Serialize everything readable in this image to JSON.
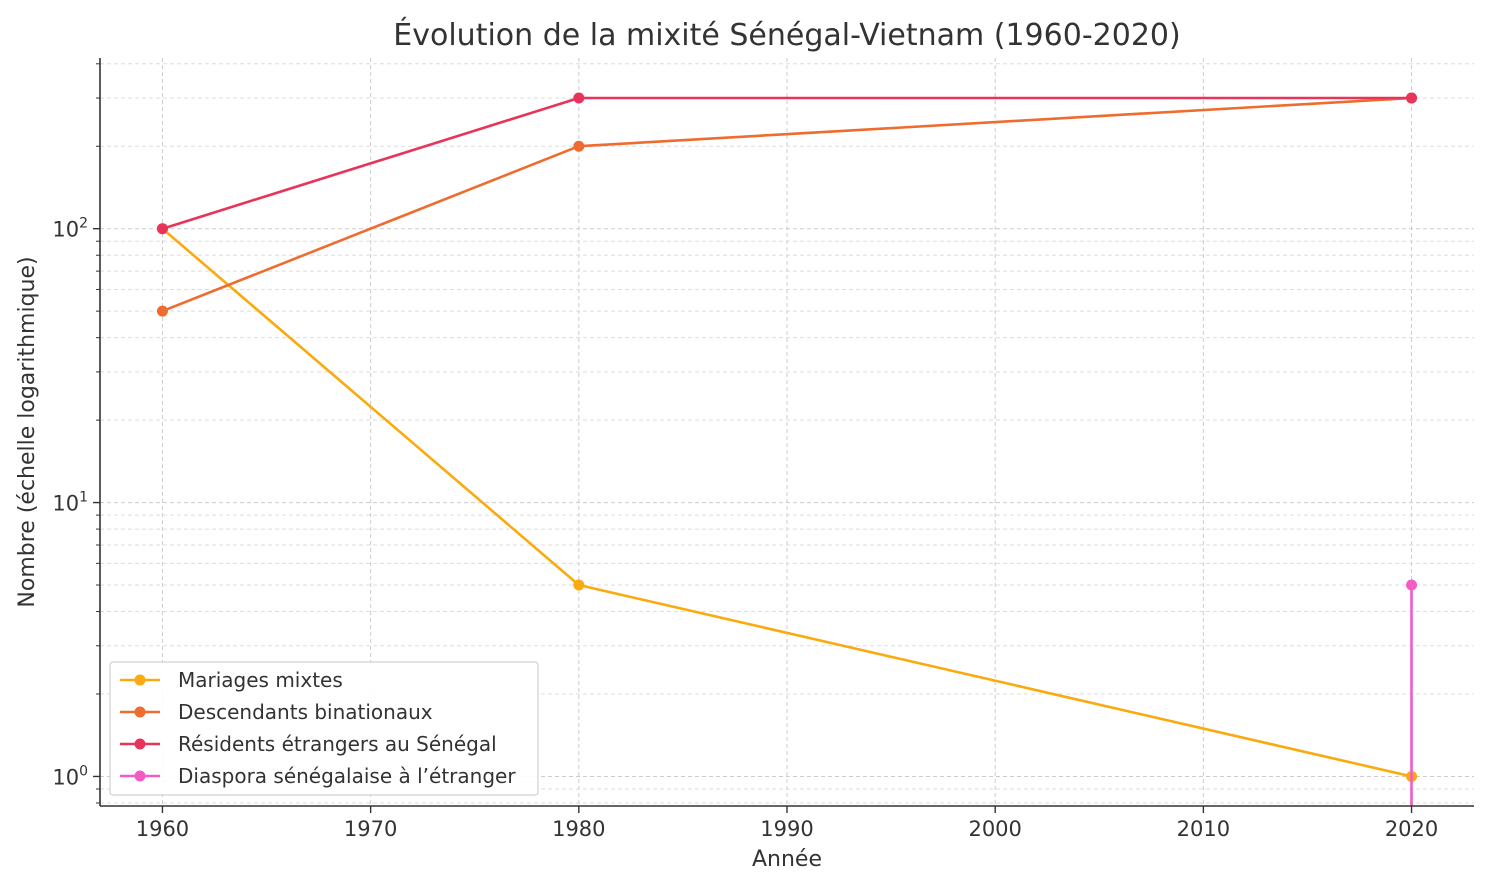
{
  "chart_data": {
    "type": "line",
    "title": "Évolution de la mixité Sénégal-Vietnam (1960-2020)",
    "xlabel": "Année",
    "ylabel": "Nombre (échelle logarithmique)",
    "yscale": "log",
    "xlim": [
      1957,
      2023
    ],
    "ylim": [
      0.78,
      420
    ],
    "x_ticks": [
      1960,
      1970,
      1980,
      1990,
      2000,
      2010,
      2020
    ],
    "y_ticks": [
      {
        "value": 1,
        "base": "10",
        "exp": "0"
      },
      {
        "value": 10,
        "base": "10",
        "exp": "1"
      },
      {
        "value": 100,
        "base": "10",
        "exp": "2"
      }
    ],
    "grid": true,
    "legend_position": "lower-left",
    "x": [
      1960,
      1980,
      2020
    ],
    "series": [
      {
        "name": "Mariages mixtes",
        "color": "#FAAA0E",
        "points": [
          [
            1960,
            100
          ],
          [
            1980,
            5
          ],
          [
            2020,
            1
          ]
        ]
      },
      {
        "name": "Descendants binationaux",
        "color": "#EE6C2D",
        "points": [
          [
            1960,
            50
          ],
          [
            1980,
            200
          ],
          [
            2020,
            300
          ]
        ]
      },
      {
        "name": "Résidents étrangers au Sénégal",
        "color": "#E8345B",
        "points": [
          [
            1960,
            100
          ],
          [
            1980,
            300
          ],
          [
            2020,
            300
          ]
        ]
      },
      {
        "name": "Diaspora sénégalaise à l’étranger",
        "color": "#F25CC4",
        "points": [
          [
            2020,
            0
          ],
          [
            2020,
            5
          ]
        ]
      }
    ]
  }
}
